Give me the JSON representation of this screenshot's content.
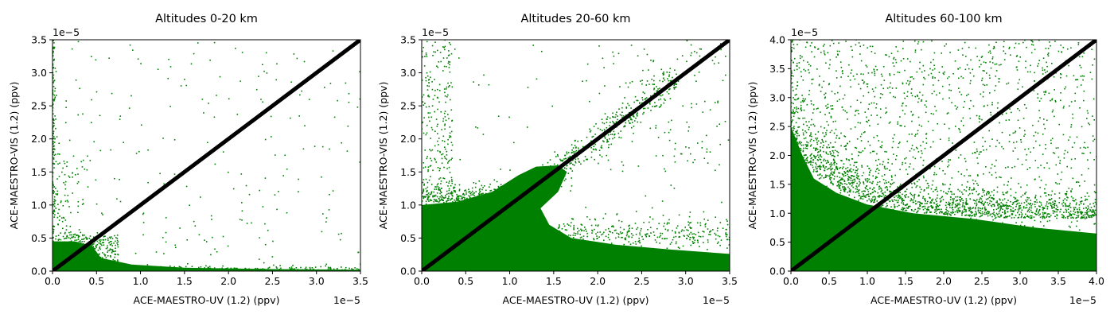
{
  "chart_data": [
    {
      "type": "scatter",
      "title": "Altitudes 0-20 km",
      "xlabel": "ACE-MAESTRO-UV (1.2) (ppv)",
      "ylabel": "ACE-MAESTRO-VIS (1.2) (ppv)",
      "axis_multiplier": "1e−5",
      "xlim": [
        0,
        3.5
      ],
      "ylim": [
        0,
        3.5
      ],
      "xticks": [
        "0.0",
        "0.5",
        "1.0",
        "1.5",
        "2.0",
        "2.5",
        "3.0",
        "3.5"
      ],
      "yticks": [
        "0.0",
        "0.5",
        "1.0",
        "1.5",
        "2.0",
        "2.5",
        "3.0",
        "3.5"
      ],
      "grid": false,
      "series": [
        {
          "color": "#008000",
          "marker": "point",
          "dense_regions": [
            {
              "shape": "blob",
              "x": [
                0,
                0.5
              ],
              "y": [
                0,
                0.45
              ]
            },
            {
              "shape": "band",
              "x": [
                0,
                3.5
              ],
              "y": [
                0,
                0.08
              ]
            }
          ],
          "sparse_points": 380
        },
        {
          "color": "#000000",
          "line": "1:1",
          "values": [
            [
              0,
              0
            ],
            [
              3.5,
              3.5
            ]
          ]
        }
      ]
    },
    {
      "type": "scatter",
      "title": "Altitudes 20-60 km",
      "xlabel": "ACE-MAESTRO-UV (1.2) (ppv)",
      "ylabel": "ACE-MAESTRO-VIS (1.2) (ppv)",
      "axis_multiplier": "1e−5",
      "xlim": [
        0,
        3.5
      ],
      "ylim": [
        0,
        3.5
      ],
      "xticks": [
        "0.0",
        "0.5",
        "1.0",
        "1.5",
        "2.0",
        "2.5",
        "3.0",
        "3.5"
      ],
      "yticks": [
        "0.0",
        "0.5",
        "1.0",
        "1.5",
        "2.0",
        "2.5",
        "3.0",
        "3.5"
      ],
      "grid": false,
      "series": [
        {
          "color": "#008000",
          "marker": "point",
          "dense_regions": [
            {
              "shape": "diagonal-wedge",
              "x": [
                0,
                1.7
              ],
              "y": [
                0,
                1.7
              ]
            },
            {
              "shape": "band",
              "x": [
                0.8,
                3.5
              ],
              "y": [
                0,
                0.45
              ]
            }
          ],
          "sparse_points": 1400
        },
        {
          "color": "#000000",
          "line": "1:1",
          "values": [
            [
              0,
              0
            ],
            [
              3.5,
              3.5
            ]
          ]
        }
      ]
    },
    {
      "type": "scatter",
      "title": "Altitudes 60-100 km",
      "xlabel": "ACE-MAESTRO-UV (1.2) (ppv)",
      "ylabel": "ACE-MAESTRO-VIS (1.2) (ppv)",
      "axis_multiplier": "1e−5",
      "xlim": [
        0,
        4.0
      ],
      "ylim": [
        0,
        4.0
      ],
      "xticks": [
        "0.0",
        "0.5",
        "1.0",
        "1.5",
        "2.0",
        "2.5",
        "3.0",
        "3.5",
        "4.0"
      ],
      "yticks": [
        "0.0",
        "0.5",
        "1.0",
        "1.5",
        "2.0",
        "2.5",
        "3.0",
        "3.5",
        "4.0"
      ],
      "grid": false,
      "series": [
        {
          "color": "#008000",
          "marker": "point",
          "dense_regions": [
            {
              "shape": "band",
              "x": [
                0,
                4.0
              ],
              "y": [
                0,
                0.8
              ]
            },
            {
              "shape": "left-column",
              "x": [
                0,
                1.0
              ],
              "y": [
                0,
                4.0
              ]
            }
          ],
          "sparse_points": 3200
        },
        {
          "color": "#000000",
          "line": "1:1",
          "values": [
            [
              0,
              0
            ],
            [
              4.0,
              4.0
            ]
          ]
        }
      ]
    }
  ]
}
